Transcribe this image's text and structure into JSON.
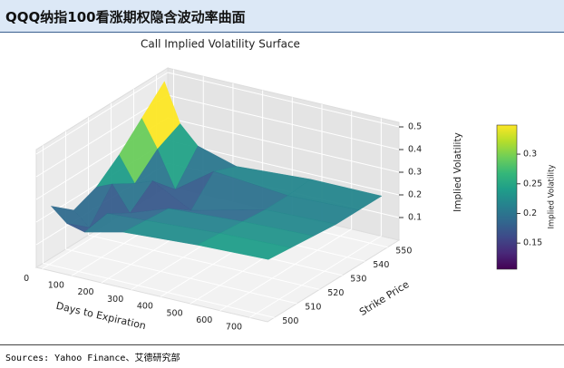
{
  "header": {
    "title": "QQQ纳指100看涨期权隐含波动率曲面"
  },
  "source": "Sources: Yahoo Finance、艾德研究部",
  "chart_data": {
    "type": "surface3d",
    "title": "Call Implied Volatility Surface",
    "x_label": "Days to Expiration",
    "y_label": "Strike Price",
    "z_label": "Implied Volatility",
    "x": [
      7,
      60,
      120,
      250,
      500,
      740
    ],
    "y": [
      500,
      510,
      520,
      530,
      540,
      550
    ],
    "z": [
      [
        0.26,
        0.2,
        0.18,
        0.22,
        0.24,
        0.25
      ],
      [
        0.18,
        0.12,
        0.2,
        0.21,
        0.23,
        0.24
      ],
      [
        0.22,
        0.25,
        0.14,
        0.2,
        0.22,
        0.23
      ],
      [
        0.3,
        0.19,
        0.22,
        0.13,
        0.21,
        0.22
      ],
      [
        0.4,
        0.28,
        0.12,
        0.24,
        0.21,
        0.22
      ],
      [
        0.5,
        0.33,
        0.25,
        0.2,
        0.22,
        0.22
      ]
    ],
    "xlim": [
      -20,
      760
    ],
    "xticks": [
      0,
      100,
      200,
      300,
      400,
      500,
      600,
      700
    ],
    "ylim": [
      497,
      555
    ],
    "yticks": [
      500,
      510,
      520,
      530,
      540,
      550
    ],
    "zlim": [
      0,
      0.52
    ],
    "zticks": [
      0.1,
      0.2,
      0.3,
      0.4,
      0.5
    ],
    "colormap": "viridis",
    "clim": [
      0.106,
      0.349
    ],
    "colorbar_ticks": [
      0.15,
      0.2,
      0.25,
      0.3
    ]
  }
}
